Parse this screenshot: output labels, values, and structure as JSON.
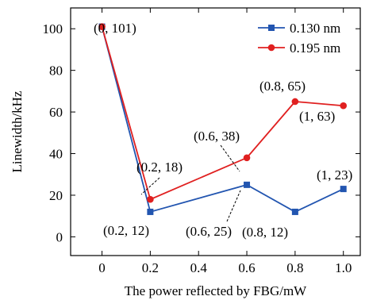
{
  "chart_data": {
    "type": "line",
    "xlabel": "The power reflected by FBG/mW",
    "ylabel": "Linewidth/kHz",
    "xlim": [
      -0.13,
      1.07
    ],
    "ylim": [
      -9,
      110
    ],
    "xticks": [
      0,
      0.2,
      0.4,
      0.6,
      0.8,
      1.0
    ],
    "xtick_labels": [
      "0",
      "0.2",
      "0.4",
      "0.6",
      "0.8",
      "1.0"
    ],
    "yticks": [
      0,
      20,
      40,
      60,
      80,
      100
    ],
    "ytick_labels": [
      "0",
      "20",
      "40",
      "60",
      "80",
      "100"
    ],
    "grid": false,
    "legend_position": "top-right",
    "series": [
      {
        "name": "0.130 nm",
        "color": "#2255b0",
        "marker": "square",
        "x": [
          0,
          0.2,
          0.6,
          0.8,
          1.0
        ],
        "y": [
          101,
          12,
          25,
          12,
          23
        ]
      },
      {
        "name": "0.195 nm",
        "color": "#e02020",
        "marker": "circle",
        "x": [
          0,
          0.2,
          0.6,
          0.8,
          1.0
        ],
        "y": [
          101,
          18,
          38,
          65,
          63
        ]
      }
    ],
    "annotations": [
      {
        "text": "(0, 101)",
        "x": 0,
        "y": 101
      },
      {
        "text": "(0.2, 18)",
        "x": 0.2,
        "y": 18
      },
      {
        "text": "(0.2, 12)",
        "x": 0.2,
        "y": 12
      },
      {
        "text": "(0.6, 38)",
        "x": 0.6,
        "y": 38
      },
      {
        "text": "(0.6, 25)",
        "x": 0.6,
        "y": 25
      },
      {
        "text": "(0.8, 65)",
        "x": 0.8,
        "y": 65
      },
      {
        "text": "(0.8, 12)",
        "x": 0.8,
        "y": 12
      },
      {
        "text": "(1, 63)",
        "x": 1.0,
        "y": 63
      },
      {
        "text": "(1, 23)",
        "x": 1.0,
        "y": 23
      }
    ]
  }
}
